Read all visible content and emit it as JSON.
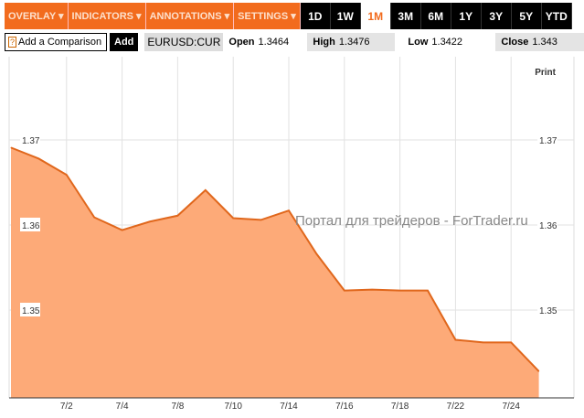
{
  "menus": [
    "OVERLAY ▾",
    "INDICATORS ▾",
    "ANNOTATIONS ▾",
    "SETTINGS ▾"
  ],
  "ranges": [
    "1D",
    "1W",
    "1M",
    "3M",
    "6M",
    "1Y",
    "3Y",
    "5Y",
    "YTD"
  ],
  "selected_range": "1M",
  "comparison": {
    "help": "?",
    "label": "Add a Comparison",
    "add": "Add"
  },
  "symbol": "EURUSD:CUR",
  "stats": {
    "open_label": "Open",
    "open": "1.3464",
    "high_label": "High",
    "high": "1.3476",
    "low_label": "Low",
    "low": "1.3422",
    "close_label": "Close",
    "close": "1.343"
  },
  "print": "Print",
  "watermark": "Портал для трейдеров - ForTrader.ru",
  "colors": {
    "accent": "#f26b1d",
    "fill": "#fdaa78",
    "line": "#e0671c"
  },
  "chart_data": {
    "type": "area",
    "x": [
      "6/30",
      "7/1",
      "7/2",
      "7/3",
      "7/4",
      "7/7",
      "7/8",
      "7/9",
      "7/10",
      "7/11",
      "7/14",
      "7/15",
      "7/16",
      "7/17",
      "7/18",
      "7/21",
      "7/22",
      "7/23",
      "7/24",
      "7/25"
    ],
    "values": [
      1.3691,
      1.3678,
      1.3659,
      1.3609,
      1.3594,
      1.3604,
      1.3611,
      1.3641,
      1.3608,
      1.3606,
      1.3617,
      1.3566,
      1.3523,
      1.3524,
      1.3523,
      1.3523,
      1.3465,
      1.3462,
      1.3462,
      1.3428
    ],
    "x_ticks": [
      "7/2",
      "7/4",
      "7/8",
      "7/10",
      "7/14",
      "7/16",
      "7/18",
      "7/22",
      "7/24"
    ],
    "y_ticks": [
      "1.37",
      "1.36",
      "1.35"
    ],
    "ylim": [
      1.3397,
      1.3775
    ],
    "grid": true
  }
}
